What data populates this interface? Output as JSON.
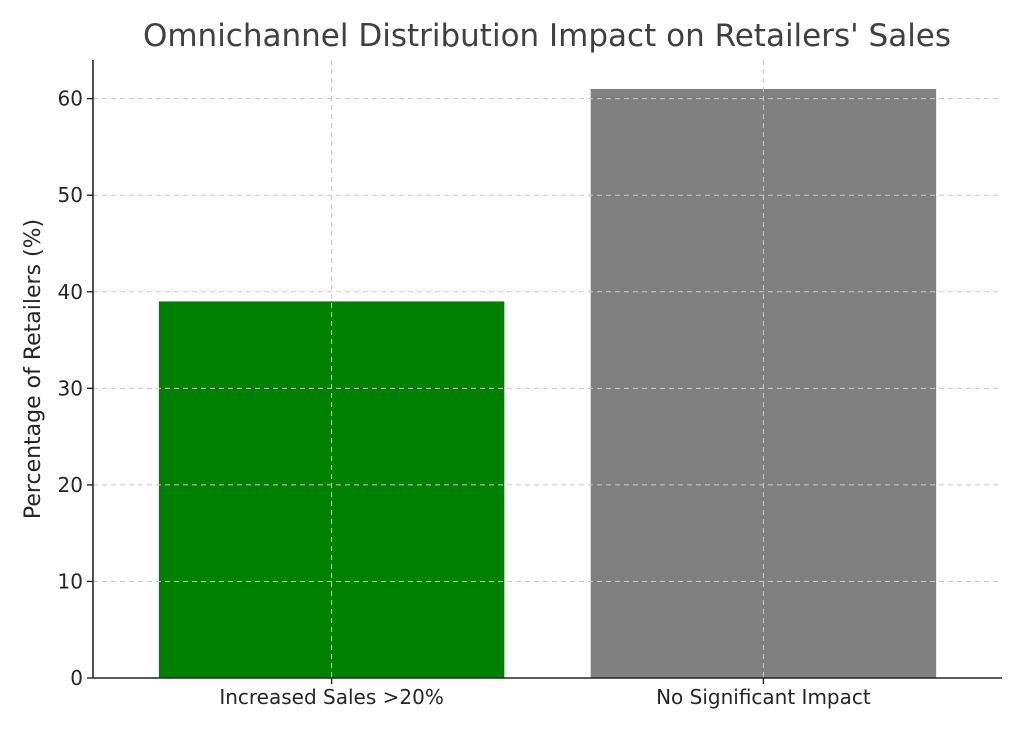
{
  "chart_data": {
    "type": "bar",
    "title": "Omnichannel Distribution Impact on Retailers' Sales",
    "xlabel": "",
    "ylabel": "Percentage of Retailers (%)",
    "categories": [
      "Increased Sales >20%",
      "No Significant Impact"
    ],
    "values": [
      39,
      61
    ],
    "colors": [
      "#008000",
      "#808080"
    ],
    "ylim": [
      0,
      64
    ],
    "yticks": [
      0,
      10,
      20,
      30,
      40,
      50,
      60
    ],
    "grid": true,
    "legend": "none"
  }
}
